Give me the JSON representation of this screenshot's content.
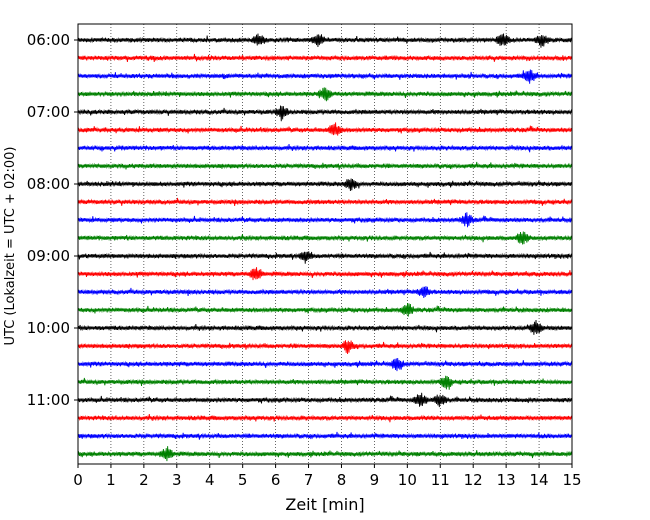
{
  "chart_data": {
    "type": "line",
    "plot_kind": "helicorder",
    "xlabel": "Zeit  [min]",
    "ylabel": "UTC (Lokalzeit = UTC + 02:00)",
    "xlim": [
      0,
      15
    ],
    "x_ticks": [
      "0",
      "1",
      "2",
      "3",
      "4",
      "5",
      "6",
      "7",
      "8",
      "9",
      "10",
      "11",
      "12",
      "13",
      "14",
      "15"
    ],
    "y_tick_labels": [
      "06:00",
      "07:00",
      "08:00",
      "09:00",
      "10:00",
      "11:00"
    ],
    "row_interval_minutes": 15,
    "row_start_times": [
      "06:00",
      "06:15",
      "06:30",
      "06:45",
      "07:00",
      "07:15",
      "07:30",
      "07:45",
      "08:00",
      "08:15",
      "08:30",
      "08:45",
      "09:00",
      "09:15",
      "09:30",
      "09:45",
      "10:00",
      "10:15",
      "10:30",
      "10:45",
      "11:00",
      "11:15",
      "11:30",
      "11:45"
    ],
    "trace_colors": [
      "#000000",
      "#ff0000",
      "#0000ff",
      "#008000"
    ],
    "vertical_grid": "dotted, every 1 min",
    "notable_events": [
      {
        "row": "06:00",
        "minute": 5.5
      },
      {
        "row": "06:00",
        "minute": 7.3
      },
      {
        "row": "06:00",
        "minute": 12.9
      },
      {
        "row": "06:00",
        "minute": 14.1
      },
      {
        "row": "06:30",
        "minute": 13.7
      },
      {
        "row": "06:45",
        "minute": 7.5
      },
      {
        "row": "07:00",
        "minute": 6.2
      },
      {
        "row": "07:15",
        "minute": 7.8
      },
      {
        "row": "08:00",
        "minute": 8.3
      },
      {
        "row": "08:30",
        "minute": 11.8
      },
      {
        "row": "08:45",
        "minute": 13.5
      },
      {
        "row": "09:00",
        "minute": 6.9
      },
      {
        "row": "09:15",
        "minute": 5.4
      },
      {
        "row": "09:30",
        "minute": 10.5
      },
      {
        "row": "09:45",
        "minute": 10.0
      },
      {
        "row": "10:00",
        "minute": 13.9
      },
      {
        "row": "10:15",
        "minute": 8.2
      },
      {
        "row": "10:30",
        "minute": 9.7
      },
      {
        "row": "10:45",
        "minute": 11.2
      },
      {
        "row": "11:00",
        "minute": 10.4
      },
      {
        "row": "11:00",
        "minute": 11.0
      },
      {
        "row": "11:45",
        "minute": 2.7
      }
    ]
  }
}
